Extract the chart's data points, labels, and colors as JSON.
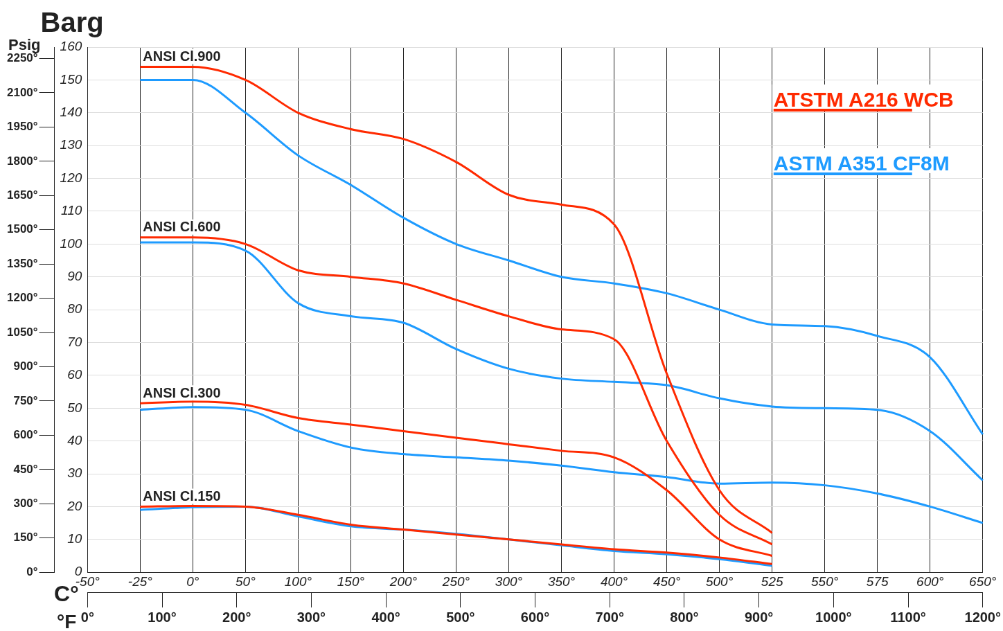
{
  "chart_data": {
    "type": "line",
    "ylabel": "Barg",
    "y2label": "Psig",
    "xlabel": "C°",
    "x2label": "°F",
    "categories": [
      "-50°",
      "-25°",
      "0°",
      "50°",
      "100°",
      "150°",
      "200°",
      "250°",
      "300°",
      "350°",
      "400°",
      "450°",
      "500°",
      "525",
      "550°",
      "575",
      "600°",
      "650°"
    ],
    "ylim": [
      0,
      160
    ],
    "yticks": [
      0,
      10,
      20,
      30,
      40,
      50,
      60,
      70,
      80,
      90,
      100,
      110,
      120,
      130,
      140,
      150,
      160
    ],
    "y2lim": [
      0,
      2300
    ],
    "y2ticks": [
      {
        "value": 0,
        "label": "0°"
      },
      {
        "value": 150,
        "label": "150°"
      },
      {
        "value": 300,
        "label": "300°"
      },
      {
        "value": 450,
        "label": "450°"
      },
      {
        "value": 600,
        "label": "600°"
      },
      {
        "value": 750,
        "label": "750°"
      },
      {
        "value": 900,
        "label": "900°"
      },
      {
        "value": 1050,
        "label": "1050°"
      },
      {
        "value": 1200,
        "label": "1200°"
      },
      {
        "value": 1350,
        "label": "1350°"
      },
      {
        "value": 1500,
        "label": "1500°"
      },
      {
        "value": 1650,
        "label": "1650°"
      },
      {
        "value": 1800,
        "label": "1800°"
      },
      {
        "value": 1950,
        "label": "1950°"
      },
      {
        "value": 2100,
        "label": "2100°"
      },
      {
        "value": 2250,
        "label": "2250°"
      }
    ],
    "x2lim": [
      0,
      1200
    ],
    "x2ticks": [
      {
        "value": 0,
        "label": "0°"
      },
      {
        "value": 100,
        "label": "100°"
      },
      {
        "value": 200,
        "label": "200°"
      },
      {
        "value": 300,
        "label": "300°"
      },
      {
        "value": 400,
        "label": "400°"
      },
      {
        "value": 500,
        "label": "500°"
      },
      {
        "value": 600,
        "label": "600°"
      },
      {
        "value": 700,
        "label": "700°"
      },
      {
        "value": 800,
        "label": "800°"
      },
      {
        "value": 900,
        "label": "900°"
      },
      {
        "value": 1000,
        "label": "1000°"
      },
      {
        "value": 1100,
        "label": "1100°"
      },
      {
        "value": 1200,
        "label": "1200°"
      }
    ],
    "grid": true,
    "legend": "top right",
    "marker": "none",
    "line_style": "solid",
    "annotations": [
      {
        "text": "ANSI Cl.900",
        "x": "-25°",
        "y": 154
      },
      {
        "text": "ANSI Cl.600",
        "x": "-25°",
        "y": 102
      },
      {
        "text": "ANSI Cl.300",
        "x": "-25°",
        "y": 51.5
      },
      {
        "text": "ANSI Cl.150",
        "x": "-25°",
        "y": 20
      }
    ],
    "series": [
      {
        "name": "ATSTM A216 WCB",
        "color": "#ff2a00",
        "values": [
          null,
          154,
          154,
          150,
          140,
          135,
          132,
          125,
          115,
          112,
          106,
          60.5,
          25,
          12,
          null,
          null,
          null,
          null
        ]
      },
      {
        "name": "ASTM A351 CF8M",
        "color": "#1e9bff",
        "values": [
          null,
          150,
          150,
          140,
          127,
          118,
          108,
          100,
          95,
          90,
          88,
          85,
          80,
          75.5,
          75,
          72,
          65.5,
          42
        ]
      },
      {
        "color": "#ff2a00",
        "values": [
          null,
          102,
          102,
          100,
          92,
          90,
          88,
          83,
          78,
          74,
          71,
          40,
          17.5,
          8.5,
          null,
          null,
          null,
          null
        ]
      },
      {
        "color": "#1e9bff",
        "values": [
          null,
          100.5,
          100.5,
          98,
          82,
          78,
          76,
          68,
          62,
          59,
          58,
          57,
          53,
          50.5,
          50,
          49.5,
          43,
          28
        ]
      },
      {
        "color": "#ff2a00",
        "values": [
          null,
          51.5,
          52,
          51,
          47,
          45,
          43,
          41,
          39,
          37,
          35,
          25,
          10,
          5,
          null,
          null,
          null,
          null
        ]
      },
      {
        "color": "#1e9bff",
        "values": [
          null,
          49.5,
          50.3,
          49.5,
          43,
          38,
          36,
          35,
          34,
          32.5,
          30.5,
          29,
          27,
          27.3,
          26.5,
          24,
          20,
          15
        ]
      },
      {
        "color": "#ff2a00",
        "values": [
          null,
          20,
          20.2,
          20,
          17.5,
          14.5,
          13,
          11.5,
          10,
          8.5,
          7,
          6,
          4.5,
          2.5,
          null,
          null,
          null,
          null
        ]
      },
      {
        "color": "#1e9bff",
        "values": [
          null,
          19,
          19.8,
          20,
          17,
          14,
          13,
          11.7,
          10,
          8.2,
          6.5,
          5.5,
          4,
          2,
          null,
          null,
          null,
          null
        ]
      }
    ]
  }
}
